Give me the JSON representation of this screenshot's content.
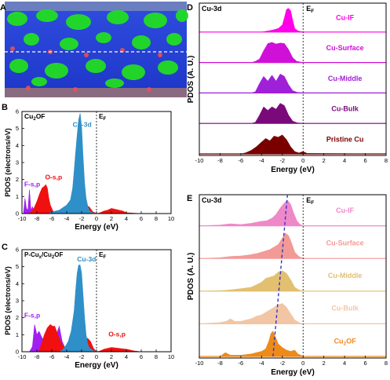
{
  "colors": {
    "cu3d_blue": "#2f8fc8",
    "o_red": "#f01010",
    "f_purple": "#a020f0",
    "if_magenta": "#ff00e8",
    "surface_magenta": "#d010d8",
    "middle_purple": "#a020d8",
    "bulk_purple": "#7a0a7a",
    "pristine_maroon": "#7a0000",
    "e_if": "#ee88c8",
    "e_surface": "#f29a96",
    "e_middle": "#e2c070",
    "e_bulk": "#f2c6a4",
    "e_cu2of": "#ec8a1a",
    "dash_blue": "#3333cc",
    "panel_a_blue": "#1f3fd0",
    "panel_a_green": "#22dd22"
  },
  "panel_labels": [
    "A",
    "B",
    "C",
    "D",
    "E"
  ],
  "chart_data": [
    {
      "panel": "B",
      "type": "area",
      "title": "Cu2OF",
      "xlabel": "Energy (eV)",
      "ylabel": "PDOS (electrons/eV)",
      "ef_label": "E",
      "ef_sub": "F",
      "xlim": [
        -10,
        10
      ],
      "ylim": [
        0,
        6
      ],
      "xticks": [
        -10,
        -8,
        -6,
        -4,
        -2,
        0,
        2,
        4,
        6,
        8,
        10
      ],
      "yticks": [
        0,
        1,
        2,
        3,
        4,
        5,
        6
      ],
      "series": [
        {
          "name": "F-s,p",
          "color": "#a020f0",
          "x": [
            -9.8,
            -9.6,
            -9.4,
            -9.2,
            -9.0,
            -8.8,
            -8.6,
            -8.4,
            -8.2,
            -8.0,
            -7.8,
            -7.6,
            -7.4,
            -7.2,
            -7.0,
            -6.5,
            -6.0,
            -5.0,
            -4.0,
            -3.0,
            -2.0,
            -1.0,
            0,
            1,
            2,
            3,
            4,
            6,
            8,
            10
          ],
          "y": [
            0,
            0.9,
            0.3,
            0.2,
            1.4,
            0.2,
            0.4,
            0.2,
            0.3,
            0.4,
            0.2,
            0.1,
            0.05,
            0.05,
            0,
            0,
            0,
            0,
            0,
            0,
            0,
            0,
            0,
            0,
            0,
            0,
            0,
            0,
            0,
            0
          ]
        },
        {
          "name": "O-s,p",
          "color": "#f01010",
          "x": [
            -10,
            -9.0,
            -8.4,
            -8.0,
            -7.6,
            -7.3,
            -7.0,
            -6.8,
            -6.6,
            -6.4,
            -6.2,
            -6.0,
            -5.8,
            -5.4,
            -5.0,
            -4.5,
            -4.0,
            -3.5,
            -3.0,
            -2.5,
            -2.0,
            -1.5,
            -1.0,
            -0.5,
            0,
            0.5,
            1.0,
            1.5,
            2.0,
            2.5,
            3.0,
            3.5,
            4.0,
            6,
            8,
            10
          ],
          "y": [
            0,
            0,
            0.3,
            0.7,
            1.2,
            1.5,
            1.6,
            1.7,
            1.5,
            0.9,
            0.5,
            0.3,
            0.1,
            0.05,
            0,
            0,
            0,
            0,
            0.15,
            0.15,
            0.3,
            0.45,
            0.4,
            0.1,
            0,
            0.05,
            0.15,
            0.2,
            0.3,
            0.25,
            0.2,
            0.15,
            0.05,
            0,
            0,
            0
          ]
        },
        {
          "name": "Cu-3d",
          "color": "#2f8fc8",
          "x": [
            -10,
            -6.5,
            -6.0,
            -5.5,
            -5.0,
            -4.5,
            -4.0,
            -3.5,
            -3.2,
            -3.0,
            -2.8,
            -2.6,
            -2.4,
            -2.2,
            -2.0,
            -1.8,
            -1.6,
            -1.4,
            -1.2,
            -1.0,
            -0.8,
            -0.5,
            0,
            10
          ],
          "y": [
            0,
            0,
            0.1,
            0.15,
            0.2,
            0.35,
            0.5,
            0.8,
            1.5,
            2.5,
            3.6,
            4.6,
            5.5,
            5.9,
            5.1,
            3.3,
            1.8,
            0.9,
            0.5,
            0.2,
            0.1,
            0.05,
            0,
            0
          ]
        }
      ],
      "annotations": [
        {
          "text": "Cu-3d",
          "x": -3.2,
          "y": 5.1
        },
        {
          "text": "O-s,p",
          "x": -6.9,
          "y": 2.0
        },
        {
          "text": "F-s,p",
          "x": -9.7,
          "y": 1.6
        }
      ]
    },
    {
      "panel": "C",
      "type": "area",
      "title": "P-Cu",
      "title_sub": "x",
      "title_rest": "/Cu",
      "title_sub2": "2",
      "title_end": "OF",
      "xlabel": "Energy (eV)",
      "ylabel": "PDOS (electrons/eV)",
      "ef_label": "E",
      "ef_sub": "F",
      "xlim": [
        -10,
        10
      ],
      "ylim": [
        0,
        6
      ],
      "xticks": [
        -10,
        -8,
        -6,
        -4,
        -2,
        0,
        2,
        4,
        6,
        8,
        10
      ],
      "yticks": [
        0,
        1,
        2,
        3,
        4,
        5,
        6
      ],
      "series": [
        {
          "name": "F-s,p",
          "color": "#a020f0",
          "x": [
            -9,
            -8.6,
            -8.3,
            -8.0,
            -7.7,
            -7.4,
            -7.0,
            -6.6,
            -6.2,
            -5.8,
            -5.4,
            -5.0,
            -4.6,
            -4.2,
            -3.8,
            -3.4,
            -3.0,
            -2.0,
            0,
            10
          ],
          "y": [
            0,
            0.3,
            1.6,
            1.0,
            1.2,
            0.9,
            0.6,
            0.5,
            0.7,
            0.4,
            1.0,
            1.5,
            0.6,
            0.2,
            0.1,
            0.05,
            0,
            0,
            0,
            0
          ]
        },
        {
          "name": "O-s,p",
          "color": "#f01010",
          "x": [
            -10,
            -7.8,
            -7.4,
            -7.0,
            -6.6,
            -6.2,
            -5.9,
            -5.6,
            -5.2,
            -4.8,
            -4.4,
            -4.0,
            -3.6,
            -3.2,
            -2.8,
            -2.4,
            -2.0,
            -1.6,
            -1.2,
            -0.8,
            -0.4,
            0,
            0.5,
            1.0,
            2.0,
            3.0,
            4.0,
            4.5,
            5.0,
            6,
            8,
            10
          ],
          "y": [
            0,
            0,
            0.4,
            1.0,
            1.4,
            1.6,
            1.5,
            1.5,
            1.0,
            0.6,
            0.3,
            0.1,
            0.1,
            0.2,
            0.3,
            0.4,
            0.5,
            0.6,
            0.8,
            0.6,
            0.2,
            0,
            0.05,
            0.15,
            0.25,
            0.2,
            0.15,
            0.1,
            0.05,
            0,
            0,
            0
          ]
        },
        {
          "name": "Cu-3d",
          "color": "#2f8fc8",
          "x": [
            -10,
            -5.0,
            -4.6,
            -4.2,
            -3.8,
            -3.4,
            -3.0,
            -2.8,
            -2.6,
            -2.4,
            -2.2,
            -2.0,
            -1.8,
            -1.6,
            -1.4,
            -1.2,
            -1.0,
            -0.6,
            0,
            10
          ],
          "y": [
            0,
            0,
            0.1,
            0.3,
            0.6,
            1.2,
            2.4,
            3.6,
            4.6,
            5.1,
            5.1,
            4.6,
            3.3,
            2.0,
            1.0,
            0.5,
            0.25,
            0.1,
            0,
            0
          ]
        }
      ],
      "annotations": [
        {
          "text": "Cu-3d",
          "x": -2.6,
          "y": 5.3
        },
        {
          "text": "O-s,p",
          "x": 1.6,
          "y": 0.9
        },
        {
          "text": "F-s,p",
          "x": -9.7,
          "y": 2.0
        }
      ]
    },
    {
      "panel": "D",
      "type": "area",
      "title": "Cu-3d",
      "xlabel": "Energy (eV)",
      "ylabel": "PDOS (A. U.)",
      "ef_label": "E",
      "ef_sub": "F",
      "xlim": [
        -10,
        8
      ],
      "xticks": [
        -10,
        -8,
        -6,
        -4,
        -2,
        0,
        2,
        4,
        6,
        8
      ],
      "series": [
        {
          "name": "Cu-IF",
          "color": "#ff00e8",
          "x": [
            -10,
            -4.0,
            -3.6,
            -3.2,
            -2.8,
            -2.4,
            -2.0,
            -1.8,
            -1.6,
            -1.4,
            -1.2,
            -1.0,
            -0.8,
            -0.5,
            0,
            8
          ],
          "y": [
            0,
            0,
            0.03,
            0.06,
            0.1,
            0.15,
            0.3,
            0.6,
            0.95,
            1.0,
            0.9,
            0.5,
            0.15,
            0.05,
            0,
            0
          ]
        },
        {
          "name": "Cu-Surface",
          "color": "#d010d8",
          "x": [
            -10,
            -5.0,
            -4.6,
            -4.2,
            -3.8,
            -3.4,
            -3.0,
            -2.6,
            -2.2,
            -1.8,
            -1.4,
            -1.0,
            -0.6,
            0,
            8
          ],
          "y": [
            0,
            0,
            0.05,
            0.15,
            0.5,
            0.8,
            0.85,
            0.78,
            0.82,
            0.8,
            0.55,
            0.2,
            0.05,
            0,
            0
          ]
        },
        {
          "name": "Cu-Middle",
          "color": "#a020d8",
          "x": [
            -10,
            -5.0,
            -4.6,
            -4.2,
            -3.8,
            -3.4,
            -3.0,
            -2.6,
            -2.2,
            -1.8,
            -1.4,
            -1.0,
            -0.6,
            0,
            8
          ],
          "y": [
            0,
            0,
            0.05,
            0.4,
            0.7,
            0.5,
            0.75,
            0.5,
            0.8,
            0.7,
            0.35,
            0.1,
            0.03,
            0,
            0
          ]
        },
        {
          "name": "Cu-Bulk",
          "color": "#7a0a7a",
          "x": [
            -10,
            -5.0,
            -4.6,
            -4.2,
            -3.8,
            -3.4,
            -3.0,
            -2.6,
            -2.2,
            -1.8,
            -1.4,
            -1.0,
            -0.6,
            0,
            8
          ],
          "y": [
            0,
            0,
            0.05,
            0.35,
            0.7,
            0.55,
            0.7,
            0.6,
            0.85,
            0.75,
            0.35,
            0.1,
            0.03,
            0,
            0
          ]
        },
        {
          "name": "Pristine Cu",
          "color": "#7a0000",
          "x": [
            -10,
            -6.0,
            -5.5,
            -5.0,
            -4.5,
            -4.0,
            -3.6,
            -3.2,
            -2.8,
            -2.4,
            -2.0,
            -1.6,
            -1.2,
            -0.8,
            -0.4,
            0,
            0.4,
            8
          ],
          "y": [
            0,
            0,
            0.05,
            0.15,
            0.3,
            0.5,
            0.65,
            0.55,
            0.75,
            0.7,
            0.8,
            0.6,
            0.3,
            0.1,
            0.04,
            0.1,
            0.02,
            0
          ]
        }
      ]
    },
    {
      "panel": "E",
      "type": "area",
      "title": "Cu-3d",
      "xlabel": "Energy (eV)",
      "ylabel": "PDOS (A. U.)",
      "ef_label": "E",
      "ef_sub": "F",
      "xlim": [
        -10,
        8
      ],
      "xticks": [
        -10,
        -8,
        -6,
        -4,
        -2,
        0,
        2,
        4,
        6,
        8
      ],
      "series": [
        {
          "name": "Cu-IF",
          "color": "#ee88c8",
          "x": [
            -10,
            -8.0,
            -7.0,
            -6.0,
            -5.0,
            -4.0,
            -3.5,
            -3.0,
            -2.6,
            -2.2,
            -1.8,
            -1.5,
            -1.2,
            -0.9,
            -0.6,
            -0.3,
            0,
            8
          ],
          "y": [
            0,
            0.03,
            0.08,
            0.05,
            0.1,
            0.18,
            0.2,
            0.3,
            0.45,
            0.7,
            0.9,
            1.0,
            0.85,
            0.5,
            0.2,
            0.06,
            0,
            0
          ]
        },
        {
          "name": "Cu-Surface",
          "color": "#f29a96",
          "x": [
            -10,
            -8.0,
            -7.0,
            -6.0,
            -5.0,
            -4.4,
            -4.0,
            -3.6,
            -3.2,
            -2.8,
            -2.4,
            -2.0,
            -1.7,
            -1.4,
            -1.1,
            -0.8,
            -0.4,
            0,
            8
          ],
          "y": [
            0,
            0.03,
            0.08,
            0.1,
            0.15,
            0.2,
            0.25,
            0.3,
            0.35,
            0.45,
            0.55,
            0.8,
            1.0,
            0.9,
            0.6,
            0.25,
            0.08,
            0,
            0
          ]
        },
        {
          "name": "Cu-Middle",
          "color": "#e2c070",
          "x": [
            -10,
            -8.0,
            -7.0,
            -6.0,
            -5.0,
            -4.5,
            -4.0,
            -3.6,
            -3.2,
            -2.8,
            -2.4,
            -2.0,
            -1.6,
            -1.2,
            -0.8,
            -0.4,
            0,
            8
          ],
          "y": [
            0,
            0.02,
            0.05,
            0.1,
            0.15,
            0.25,
            0.35,
            0.5,
            0.55,
            0.6,
            0.75,
            0.8,
            0.7,
            0.45,
            0.15,
            0.05,
            0,
            0
          ]
        },
        {
          "name": "Cu-Bulk",
          "color": "#f2c6a4",
          "x": [
            -10,
            -8.0,
            -7.4,
            -7.0,
            -6.6,
            -6.0,
            -5.0,
            -4.5,
            -4.0,
            -3.6,
            -3.2,
            -2.8,
            -2.4,
            -2.0,
            -1.6,
            -1.2,
            -0.8,
            -0.4,
            0,
            8
          ],
          "y": [
            0,
            0.05,
            0.1,
            0.2,
            0.1,
            0.1,
            0.2,
            0.3,
            0.35,
            0.45,
            0.55,
            0.65,
            0.75,
            0.8,
            0.65,
            0.4,
            0.15,
            0.05,
            0,
            0
          ]
        },
        {
          "name": "Cu₂OF",
          "color": "#ec8a1a",
          "x": [
            -10,
            -8.0,
            -7.5,
            -7.0,
            -6.0,
            -5.0,
            -4.5,
            -4.0,
            -3.6,
            -3.3,
            -3.1,
            -2.9,
            -2.7,
            -2.4,
            -2.0,
            -1.6,
            -1.2,
            -0.8,
            -0.5,
            -0.2,
            0,
            8
          ],
          "y": [
            0,
            0,
            0.15,
            0.05,
            0.05,
            0.1,
            0.15,
            0.2,
            0.3,
            0.6,
            0.9,
            1.0,
            0.8,
            0.5,
            0.35,
            0.25,
            0.2,
            0.25,
            0.1,
            0.05,
            0,
            0
          ]
        }
      ],
      "trend_line": {
        "x": [
          -3.0,
          -1.4
        ],
        "note": "peak shift"
      }
    }
  ],
  "panel_d_labels": [
    "Cu-IF",
    "Cu-Surface",
    "Cu-Middle",
    "Cu-Bulk",
    "Pristine Cu"
  ],
  "panel_e_labels": [
    "Cu-IF",
    "Cu-Surface",
    "Cu-Middle",
    "Cu-Bulk",
    "Cu"
  ],
  "panel_e_last_sub": "2",
  "panel_e_last_end": "OF"
}
